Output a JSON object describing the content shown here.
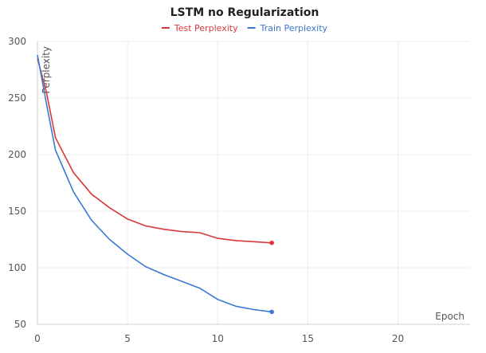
{
  "chart_data": {
    "type": "line",
    "title": "LSTM no Regularization",
    "xlabel": "Epoch",
    "ylabel": "Perplexity",
    "xlim": [
      0,
      24
    ],
    "ylim": [
      50,
      300
    ],
    "xticks": [
      0,
      5,
      10,
      15,
      20
    ],
    "yticks": [
      50,
      100,
      150,
      200,
      250,
      300
    ],
    "grid": true,
    "legend_position": "top-center",
    "series": [
      {
        "name": "Test Perplexity",
        "color": "#d9383a",
        "x": [
          0,
          0.5,
          1,
          2,
          3,
          4,
          5,
          6,
          7,
          8,
          9,
          10,
          11,
          12,
          13
        ],
        "y": [
          285,
          255,
          215,
          184,
          165,
          153,
          143,
          137,
          134,
          132,
          131,
          126,
          124,
          123,
          122
        ]
      },
      {
        "name": "Train Perplexity",
        "color": "#3a78d4",
        "x": [
          0,
          0.5,
          1,
          2,
          3,
          4,
          5,
          6,
          7,
          8,
          9,
          10,
          11,
          12,
          13
        ],
        "y": [
          288,
          245,
          204,
          167,
          142,
          125,
          112,
          101,
          94,
          88,
          82,
          72,
          66,
          63,
          61
        ]
      }
    ]
  }
}
